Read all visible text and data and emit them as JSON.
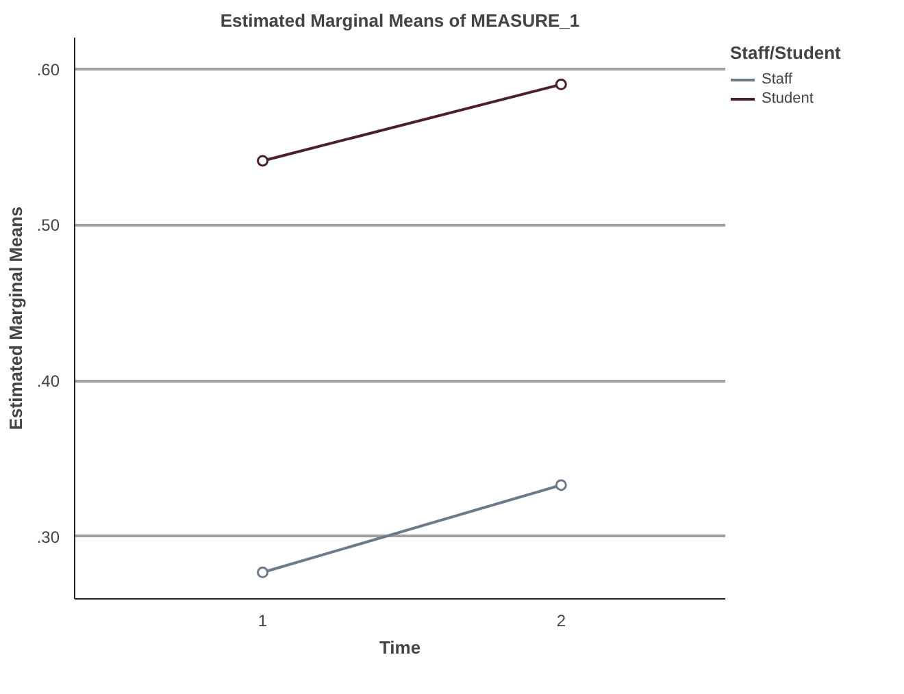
{
  "chart_data": {
    "type": "line",
    "title": "Estimated Marginal Means of MEASURE_1",
    "xlabel": "Time",
    "ylabel": "Estimated Marginal Means",
    "legend_title": "Staff/Student",
    "categories": [
      "1",
      "2"
    ],
    "series": [
      {
        "name": "Staff",
        "color": "#6b7b8c",
        "values": [
          0.277,
          0.333
        ]
      },
      {
        "name": "Student",
        "color": "#4a2030",
        "values": [
          0.541,
          0.59
        ]
      }
    ],
    "ylim": [
      0.26,
      0.62
    ],
    "yticks": [
      {
        "value": 0.3,
        "label": ".30"
      },
      {
        "value": 0.4,
        "label": ".40"
      },
      {
        "value": 0.5,
        "label": ".50"
      },
      {
        "value": 0.6,
        "label": ".60"
      }
    ],
    "grid": "y",
    "legend": "top right",
    "marker": "circle",
    "line_style": "solid"
  }
}
